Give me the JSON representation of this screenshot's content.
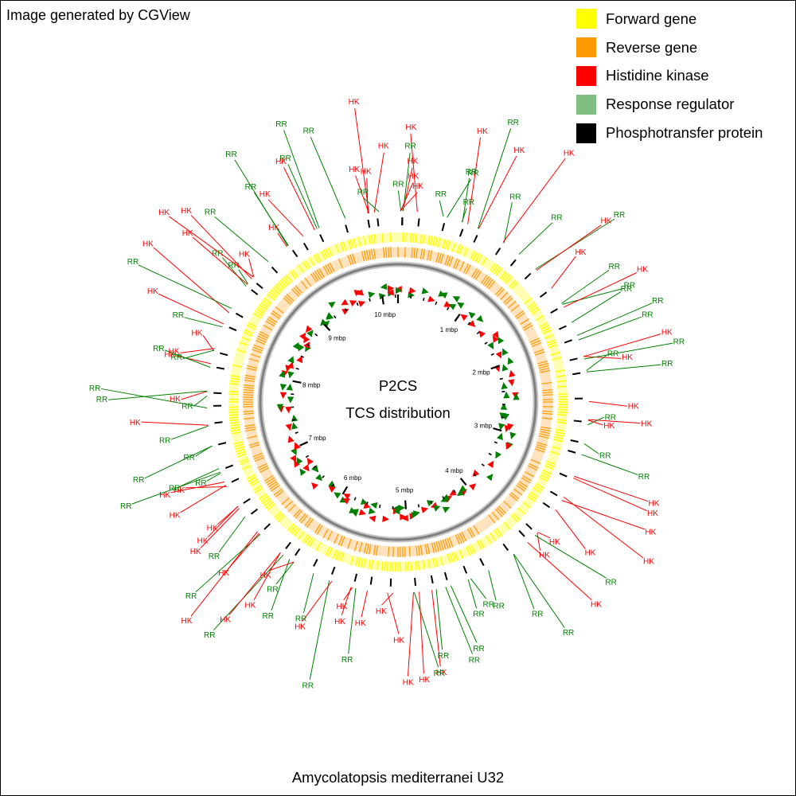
{
  "header": {
    "generator_note": "Image generated by CGView"
  },
  "legend": [
    {
      "label": "Forward gene",
      "color": "#ffff00"
    },
    {
      "label": "Reverse gene",
      "color": "#ff9900"
    },
    {
      "label": "Histidine kinase",
      "color": "#ff0000"
    },
    {
      "label": "Response regulator",
      "color": "#7fbf7f"
    },
    {
      "label": "Phosphotransfer protein",
      "color": "#000000"
    }
  ],
  "map": {
    "title_line1": "P2CS",
    "title_line2": "TCS distribution",
    "genome_size_mbp": 10.24,
    "tick_labels": [
      "1 mbp",
      "2 mbp",
      "3 mbp",
      "4 mbp",
      "5 mbp",
      "6 mbp",
      "7 mbp",
      "8 mbp",
      "9 mbp",
      "10 mbp"
    ],
    "feature_labels": {
      "hk": "HK",
      "rr": "RR"
    },
    "colors": {
      "forward": "#ffff00",
      "reverse": "#ff9900",
      "hk": "#ff0000",
      "rr": "#008000",
      "backbone": "#808080",
      "ticks": "#000000"
    }
  },
  "footer": {
    "organism": "Amycolatopsis mediterranei U32"
  }
}
